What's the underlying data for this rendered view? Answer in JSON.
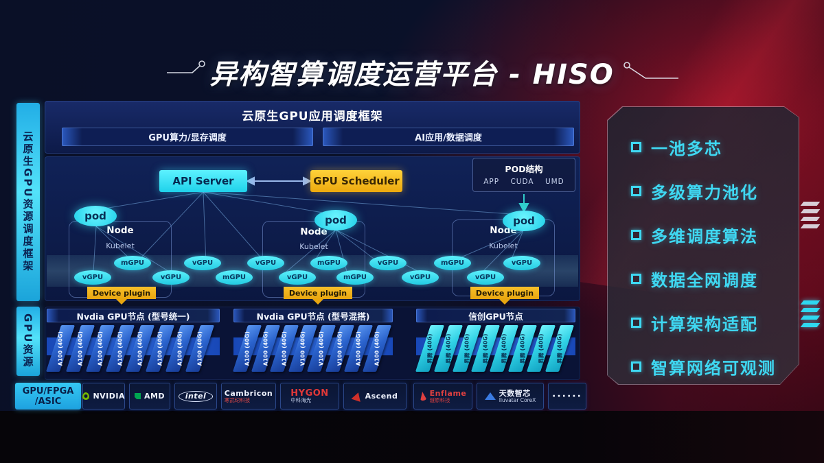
{
  "title": "异构智算调度运营平台 - HISO",
  "sidebar": {
    "top_label": "云原生GPU资源调度框架",
    "mid_label": "GPU资源",
    "bottom_label_line1": "GPU/FPGA",
    "bottom_label_line2": "/ASIC"
  },
  "framework": {
    "title": "云原生GPU应用调度框架",
    "lanes": [
      "GPU算力/显存调度",
      "AI应用/数据调度"
    ]
  },
  "control": {
    "api_server": "API Server",
    "gpu_scheduler": "GPU Scheduler",
    "pod_struct": {
      "title": "POD结构",
      "items": [
        "APP",
        "CUDA",
        "UMD"
      ]
    }
  },
  "gpu_pool": {
    "labels": [
      "vGPU",
      "mGPU",
      "vGPU",
      "vGPU",
      "mGPU",
      "vGPU",
      "vGPU",
      "mGPU",
      "mGPU",
      "vGPU",
      "vGPU",
      "mGPU",
      "vGPU",
      "vGPU"
    ]
  },
  "clusters": [
    {
      "pod": "pod",
      "node_label": "Node",
      "kubelet": "Kubelet",
      "device_plugin": "Device plugin",
      "header": "Nvdia GPU节点 (型号统一)",
      "cards": [
        "A100 (40G)",
        "A100 (40G)",
        "A100 (40G)",
        "A100 (40G)",
        "A100 (40G)",
        "A100 (40G)",
        "A100 (40G)",
        "A100 (40G)"
      ]
    },
    {
      "pod": "pod",
      "node_label": "Node",
      "kubelet": "Kubelet",
      "device_plugin": "Device plugin",
      "header": "Nvdia GPU节点 (型号混搭)",
      "cards": [
        "A100 (40G)",
        "A100 (40G)",
        "A100 (40G)",
        "V100 (40G)",
        "V100 (40G)",
        "V100 (40G)",
        "A100 (40G)",
        "A100 (40G)"
      ]
    },
    {
      "pod": "pod",
      "node_label": "Node",
      "kubelet": "Kubelet",
      "device_plugin": "Device plugin",
      "header": "信创GPU节点",
      "cards": [
        "昇腾 (40G)",
        "昇腾 (40G)",
        "昇腾 (40G)",
        "昇腾 (40G)",
        "昇腾 (40G)",
        "昇腾 (40G)",
        "昇腾 (40G)",
        "昇腾 (40G)"
      ]
    }
  ],
  "features": {
    "items": [
      "一池多芯",
      "多级算力池化",
      "多维调度算法",
      "数据全网调度",
      "计算架构适配",
      "智算网络可观测"
    ]
  },
  "vendors": [
    {
      "id": "nvidia",
      "label": "NVIDIA",
      "sub": ""
    },
    {
      "id": "amd",
      "label": "AMD",
      "sub": ""
    },
    {
      "id": "intel",
      "label": "intel",
      "sub": ""
    },
    {
      "id": "cambricon",
      "label": "Cambricon",
      "sub": "寒武纪科技"
    },
    {
      "id": "hygon",
      "label": "HYGON",
      "sub": "中科海光"
    },
    {
      "id": "ascend",
      "label": "Ascend",
      "sub": ""
    },
    {
      "id": "enflame",
      "label": "Enflame",
      "sub": "燧原科技"
    },
    {
      "id": "iluvatar",
      "label": "天数智芯",
      "sub": "Iluvatar CoreX"
    },
    {
      "id": "more",
      "label": "······",
      "sub": ""
    }
  ],
  "colors": {
    "cyan_accent": "#3fd8f2",
    "yellow_accent": "#f0b01c",
    "panel_blue": "#102257",
    "card_blue": "#2a62cc",
    "red_glow": "#be162c"
  }
}
